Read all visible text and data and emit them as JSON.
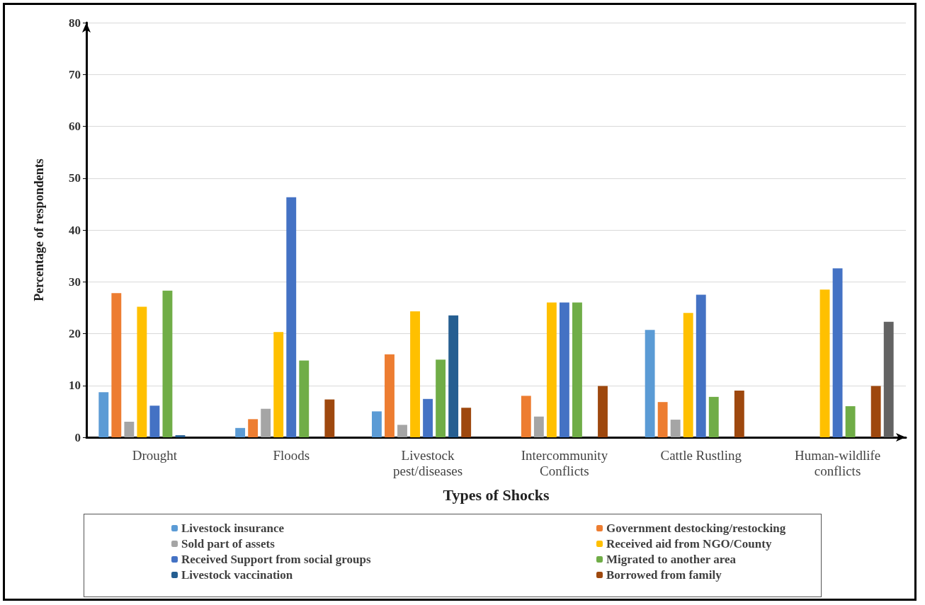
{
  "chart_data": {
    "type": "bar",
    "xlabel": "Types of Shocks",
    "ylabel": "Percentage of respondents",
    "categories": [
      "Drought",
      "Floods",
      "Livestock\npest/diseases",
      "Intercommunity\nConflicts",
      "Cattle Rustling",
      "Human-wildlife\nconflicts"
    ],
    "ylim": [
      0,
      80
    ],
    "yticks": [
      0,
      10,
      20,
      30,
      40,
      50,
      60,
      70,
      80
    ],
    "grid": "y",
    "legend": "bottom",
    "series": [
      {
        "name": "Livestock insurance",
        "color": "#5b9bd5",
        "values": [
          8.7,
          1.8,
          5.0,
          null,
          20.7,
          null
        ]
      },
      {
        "name": "Government destocking/restocking",
        "color": "#ed7d31",
        "values": [
          27.8,
          3.5,
          16.0,
          8.0,
          6.8,
          null
        ]
      },
      {
        "name": "Sold part of assets",
        "color": "#a5a5a5",
        "values": [
          3.0,
          5.5,
          2.4,
          4.0,
          3.4,
          null
        ]
      },
      {
        "name": "Received aid from NGO/County",
        "color": "#ffc000",
        "values": [
          25.2,
          20.3,
          24.3,
          26.0,
          24.0,
          28.5
        ]
      },
      {
        "name": "Received Support from social groups",
        "color": "#4472c4",
        "values": [
          6.1,
          46.3,
          7.4,
          26.0,
          27.5,
          32.6
        ]
      },
      {
        "name": "Migrated to another area",
        "color": "#70ad47",
        "values": [
          28.3,
          14.8,
          15.0,
          26.0,
          7.8,
          6.0
        ]
      },
      {
        "name": "Livestock vaccination",
        "color": "#255e91",
        "values": [
          0.4,
          null,
          23.5,
          null,
          null,
          null
        ]
      },
      {
        "name": "Borrowed from family",
        "color": "#9e480e",
        "values": [
          null,
          7.3,
          5.7,
          9.9,
          9.0,
          9.9
        ]
      },
      {
        "color": "#636363",
        "values": [
          null,
          null,
          null,
          null,
          null,
          22.3
        ]
      }
    ]
  }
}
